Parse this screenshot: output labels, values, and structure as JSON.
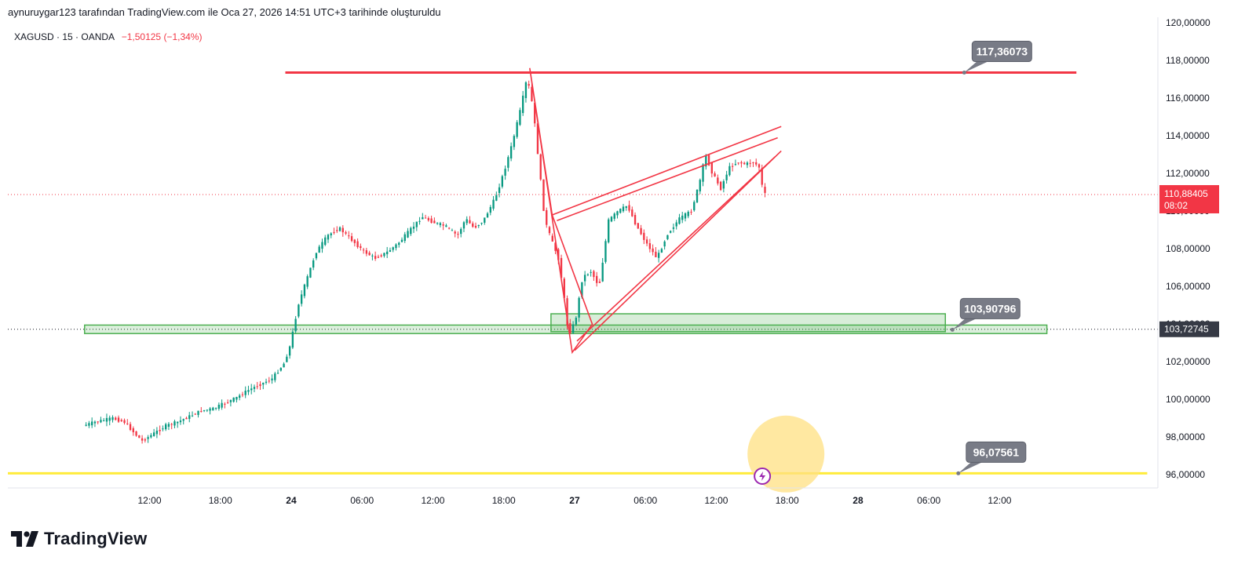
{
  "header": {
    "caption": "aynuruygar123 tarafından TradingView.com ile Oca 27, 2026 14:51 UTC+3 tarihinde oluşturuldu"
  },
  "legend": {
    "symbol": "XAGUSD · 15 · OANDA",
    "change": "−1,50125 (−1,34%)"
  },
  "brand": {
    "name": "TradingView",
    "logo_icon": "tradingview-logo-icon"
  },
  "colors": {
    "up": "#089981",
    "down": "#f23645",
    "resistance": "#f23645",
    "support_zone": "#4caf50",
    "support_line": "#ffeb3b",
    "callout": "#787b86",
    "highlight": "#ffe082"
  },
  "chart_data": {
    "type": "candlestick",
    "symbol": "XAGUSD",
    "interval": "15",
    "y_axis": {
      "min": 95.3,
      "max": 120.3,
      "ticks": [
        "120,00000",
        "118,00000",
        "116,00000",
        "114,00000",
        "112,00000",
        "110,00000",
        "108,00000",
        "106,00000",
        "104,00000",
        "102,00000",
        "100,00000",
        "98,00000",
        "96,00000"
      ],
      "tick_values": [
        120,
        118,
        116,
        114,
        112,
        110,
        108,
        106,
        104,
        102,
        100,
        98,
        96
      ]
    },
    "x_axis": {
      "ticks": [
        {
          "label": "12:00",
          "bold": false
        },
        {
          "label": "18:00",
          "bold": false
        },
        {
          "label": "24",
          "bold": true
        },
        {
          "label": "06:00",
          "bold": false
        },
        {
          "label": "12:00",
          "bold": false
        },
        {
          "label": "18:00",
          "bold": false
        },
        {
          "label": "27",
          "bold": true
        },
        {
          "label": "06:00",
          "bold": false
        },
        {
          "label": "12:00",
          "bold": false
        },
        {
          "label": "18:00",
          "bold": false
        },
        {
          "label": "28",
          "bold": true
        },
        {
          "label": "06:00",
          "bold": false
        },
        {
          "label": "12:00",
          "bold": false
        }
      ],
      "tick_hours": [
        12,
        18,
        24,
        30,
        36,
        42,
        48,
        54,
        60,
        66,
        72,
        78,
        84
      ]
    },
    "price_path": [
      [
        6.5,
        98.6
      ],
      [
        7.5,
        98.8
      ],
      [
        9,
        99.0
      ],
      [
        10,
        98.8
      ],
      [
        11,
        98.1
      ],
      [
        11.5,
        97.8
      ],
      [
        12.5,
        98.2
      ],
      [
        13.5,
        98.6
      ],
      [
        14.5,
        98.8
      ],
      [
        15.5,
        99.1
      ],
      [
        16.5,
        99.4
      ],
      [
        17.5,
        99.5
      ],
      [
        18.5,
        99.8
      ],
      [
        19.5,
        100.1
      ],
      [
        20.5,
        100.5
      ],
      [
        21.5,
        100.8
      ],
      [
        22.5,
        101.1
      ],
      [
        23.5,
        101.9
      ],
      [
        24,
        102.8
      ],
      [
        24.3,
        103.7
      ],
      [
        24.7,
        105.0
      ],
      [
        25.5,
        106.5
      ],
      [
        26.2,
        107.8
      ],
      [
        27.2,
        108.7
      ],
      [
        28.2,
        109.1
      ],
      [
        29.2,
        108.5
      ],
      [
        30.2,
        107.9
      ],
      [
        31.2,
        107.5
      ],
      [
        32.2,
        107.8
      ],
      [
        33.2,
        108.3
      ],
      [
        34.2,
        109.0
      ],
      [
        35.2,
        109.7
      ],
      [
        36.2,
        109.4
      ],
      [
        37.2,
        109.2
      ],
      [
        38.2,
        108.7
      ],
      [
        38.9,
        109.6
      ],
      [
        39.6,
        109.1
      ],
      [
        40.4,
        109.5
      ],
      [
        41.4,
        110.7
      ],
      [
        42.1,
        112.0
      ],
      [
        42.8,
        113.5
      ],
      [
        43.5,
        115.3
      ],
      [
        44.1,
        117.1
      ],
      [
        44.6,
        115.5
      ],
      [
        45.1,
        112.5
      ],
      [
        45.6,
        109.5
      ],
      [
        46.2,
        108.4
      ],
      [
        46.8,
        107.4
      ],
      [
        47.3,
        105.1
      ],
      [
        47.6,
        103.4
      ],
      [
        48.2,
        104.2
      ],
      [
        48.8,
        106.5
      ],
      [
        49.5,
        106.8
      ],
      [
        50.2,
        106.0
      ],
      [
        51.0,
        109.5
      ],
      [
        51.8,
        110.0
      ],
      [
        52.6,
        110.3
      ],
      [
        53.3,
        109.3
      ],
      [
        54.2,
        108.3
      ],
      [
        55.1,
        107.5
      ],
      [
        56.0,
        108.8
      ],
      [
        57.0,
        109.6
      ],
      [
        58.0,
        110.0
      ],
      [
        58.7,
        111.5
      ],
      [
        59.2,
        113.0
      ],
      [
        59.8,
        112.0
      ],
      [
        60.5,
        111.2
      ],
      [
        61.2,
        112.3
      ],
      [
        61.9,
        112.6
      ],
      [
        62.6,
        112.5
      ],
      [
        63.3,
        112.6
      ],
      [
        63.8,
        112.3
      ],
      [
        64.1,
        110.9
      ]
    ],
    "annotations": {
      "resistance": {
        "value": 117.36073,
        "label": "117,36073",
        "x_start": 23.5,
        "x_end": 90.5,
        "label_x": 81
      },
      "support_zone": {
        "top": 103.95,
        "bottom": 103.5,
        "label": "103,90796",
        "x_start": 6.5,
        "x_end": 88.0,
        "label_x": 80
      },
      "demand_zone": {
        "top": 104.55,
        "bottom": 103.6,
        "x_start": 46.0,
        "x_end": 79.4
      },
      "support_line": {
        "value": 96.07561,
        "label": "96,07561",
        "x_start": 0,
        "x_end": 96.5,
        "label_x": 80.5
      },
      "triangle": [
        [
          44.2,
          117.6
        ],
        [
          47.8,
          102.5
        ],
        [
          49.5,
          104.0
        ],
        [
          46.1,
          109.8
        ]
      ],
      "wedge_upper": [
        [
          46.1,
          109.8
        ],
        [
          65.5,
          114.5
        ]
      ],
      "wedge_upper_inner": [
        [
          46.5,
          109.5
        ],
        [
          65.2,
          113.9
        ]
      ],
      "wedge_lower": [
        [
          48.0,
          102.6
        ],
        [
          65.5,
          113.2
        ]
      ],
      "wedge_lower_inner": [
        [
          48.2,
          103.1
        ],
        [
          65.0,
          112.9
        ]
      ]
    },
    "current_price": {
      "value": 110.88405,
      "label": "110,88405",
      "countdown": "08:02"
    },
    "support_tag": {
      "value": 103.72745,
      "label": "103,72745"
    },
    "highlight_circle": {
      "x": 65.9,
      "y": 97.1
    },
    "event_icon": "lightning-event-icon"
  }
}
